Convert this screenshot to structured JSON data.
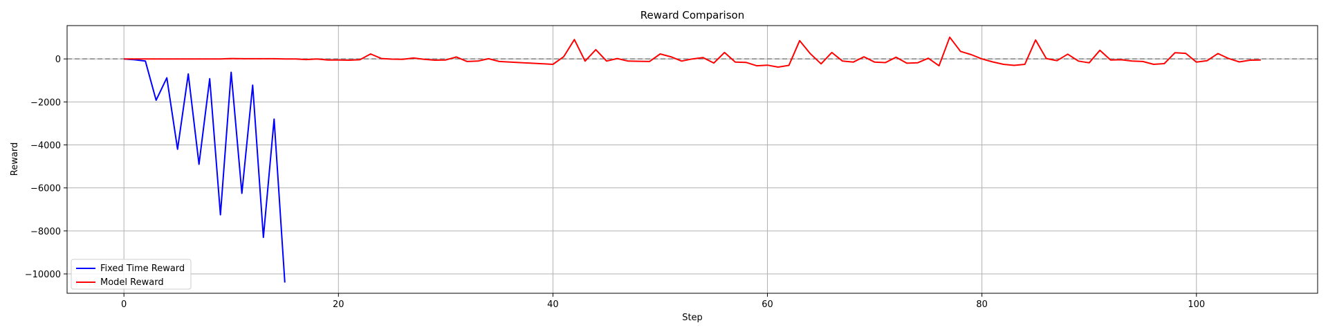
{
  "chart_data": {
    "type": "line",
    "title": "Reward Comparison",
    "xlabel": "Step",
    "ylabel": "Reward",
    "xlim": [
      -5.3,
      111.3
    ],
    "ylim": [
      -10900,
      1550
    ],
    "xticks": [
      0,
      20,
      40,
      60,
      80,
      100
    ],
    "yticks": [
      0,
      -2000,
      -4000,
      -6000,
      -8000,
      -10000
    ],
    "grid": true,
    "legend_position": "lower-left",
    "reference_line": {
      "y": 0,
      "style": "dashed",
      "color": "#808080"
    },
    "series": [
      {
        "name": "Fixed Time Reward",
        "color": "#0000ff",
        "x": [
          0,
          1,
          2,
          3,
          4,
          5,
          6,
          7,
          8,
          9,
          10,
          11,
          12,
          13,
          14,
          15
        ],
        "values": [
          0,
          -40,
          -100,
          -1920,
          -880,
          -4200,
          -700,
          -4900,
          -920,
          -7250,
          -620,
          -6250,
          -1220,
          -8300,
          -2800,
          -10400
        ]
      },
      {
        "name": "Model Reward",
        "color": "#ff0000",
        "x": [
          0,
          1,
          2,
          3,
          4,
          5,
          6,
          7,
          8,
          9,
          10,
          11,
          12,
          13,
          14,
          15,
          16,
          17,
          18,
          19,
          20,
          21,
          22,
          23,
          24,
          25,
          26,
          27,
          28,
          29,
          30,
          31,
          32,
          33,
          34,
          35,
          40,
          41,
          42,
          43,
          44,
          45,
          46,
          47,
          48,
          49,
          50,
          51,
          52,
          53,
          54,
          55,
          56,
          57,
          58,
          59,
          60,
          61,
          62,
          63,
          64,
          65,
          66,
          67,
          68,
          69,
          70,
          71,
          72,
          73,
          74,
          75,
          76,
          77,
          78,
          79,
          80,
          81,
          82,
          83,
          84,
          85,
          86,
          87,
          88,
          89,
          90,
          91,
          92,
          93,
          94,
          95,
          96,
          97,
          98,
          99,
          100,
          101,
          102,
          103,
          104,
          105,
          106
        ],
        "values": [
          0,
          0,
          0,
          0,
          0,
          0,
          0,
          0,
          0,
          0,
          20,
          10,
          10,
          10,
          10,
          0,
          0,
          -30,
          0,
          -50,
          -50,
          -60,
          -40,
          230,
          20,
          -10,
          -20,
          40,
          -20,
          -60,
          -50,
          90,
          -120,
          -100,
          10,
          -120,
          -250,
          100,
          900,
          -100,
          430,
          -100,
          20,
          -100,
          -110,
          -120,
          230,
          100,
          -100,
          0,
          60,
          -190,
          300,
          -150,
          -160,
          -320,
          -290,
          -380,
          -300,
          850,
          240,
          -230,
          300,
          -100,
          -150,
          100,
          -150,
          -170,
          80,
          -200,
          -180,
          30,
          -320,
          1010,
          350,
          200,
          0,
          -140,
          -250,
          -300,
          -250,
          880,
          20,
          -80,
          220,
          -100,
          -180,
          400,
          -50,
          -40,
          -100,
          -120,
          -250,
          -220,
          290,
          260,
          -150,
          -80,
          250,
          20,
          -140,
          -60,
          -50
        ]
      }
    ]
  }
}
